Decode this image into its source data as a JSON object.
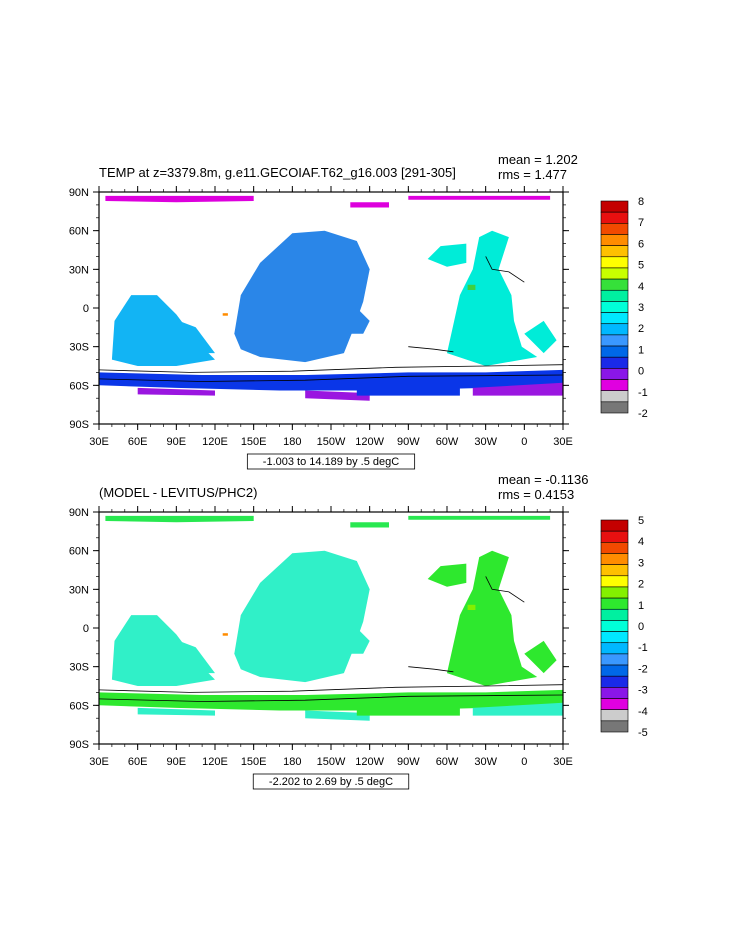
{
  "chart_data": [
    {
      "type": "heatmap",
      "title": "TEMP at z=3379.8m, g.e11.GECOIAF.T62_g16.003 [291-305]",
      "stats": [
        "mean = 1.202",
        "rms = 1.477"
      ],
      "contour_info": "-1.003 to 14.189 by .5 degC",
      "x_ticks": [
        "30E",
        "60E",
        "90E",
        "120E",
        "150E",
        "180",
        "150W",
        "120W",
        "90W",
        "60W",
        "30W",
        "0",
        "30E"
      ],
      "y_ticks": [
        "90N",
        "60N",
        "30N",
        "0",
        "30S",
        "60S",
        "90S"
      ],
      "colorbar_labels": [
        "8",
        "7",
        "6",
        "5",
        "4",
        "3",
        "2",
        "1",
        "0",
        "-1",
        "-2"
      ],
      "colorbar_colors": [
        "#c40000",
        "#e81010",
        "#f24a00",
        "#ff8c00",
        "#ffc000",
        "#ffff00",
        "#c8ff00",
        "#36e03a",
        "#00f0a0",
        "#00ffd8",
        "#00e8ff",
        "#00b8ff",
        "#3a98ff",
        "#0068e8",
        "#1a2ae8",
        "#8a16e8",
        "#e000e0",
        "#cccccc",
        "#777777"
      ],
      "field_colors": {
        "arctic": "#dd00dd",
        "pacific": "#2a86e8",
        "indian": "#12b4f4",
        "atlantic": "#00ecd8",
        "southern_a": "#0a36e8",
        "southern_b": "#9a16e0",
        "land_patch": "#40d040",
        "warm_spot": "#ff8c00"
      }
    },
    {
      "type": "heatmap",
      "title": "(MODEL - LEVITUS/PHC2)",
      "stats": [
        "mean = -0.1136",
        "rms = 0.4153"
      ],
      "contour_info": "-2.202 to 2.69 by .5 degC",
      "x_ticks": [
        "30E",
        "60E",
        "90E",
        "120E",
        "150E",
        "180",
        "150W",
        "120W",
        "90W",
        "60W",
        "30W",
        "0",
        "30E"
      ],
      "y_ticks": [
        "90N",
        "60N",
        "30N",
        "0",
        "30S",
        "60S",
        "90S"
      ],
      "colorbar_labels": [
        "5",
        "4",
        "3",
        "2",
        "1",
        "0",
        "-1",
        "-2",
        "-3",
        "-4",
        "-5"
      ],
      "colorbar_colors": [
        "#c40000",
        "#e81010",
        "#f24a00",
        "#ff8c00",
        "#ffc000",
        "#ffff00",
        "#84f000",
        "#2ee82e",
        "#00f0a0",
        "#00ffd8",
        "#00e8ff",
        "#00b8ff",
        "#3a98ff",
        "#0068e8",
        "#1a2ae8",
        "#8a16e8",
        "#e000e0",
        "#cccccc",
        "#777777"
      ],
      "field_colors": {
        "arctic": "#28e850",
        "pacific": "#30f0c8",
        "indian": "#30f0c8",
        "atlantic": "#2ee82e",
        "southern_a": "#2ee82e",
        "southern_b": "#30f0c8",
        "land_patch": "#84f000",
        "warm_spot": "#ff8c00"
      }
    }
  ]
}
